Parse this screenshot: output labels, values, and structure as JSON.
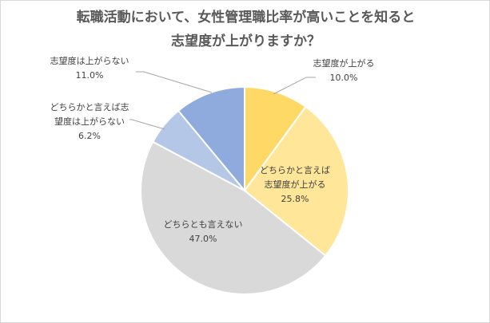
{
  "chart_data": {
    "type": "pie",
    "title": [
      "転職活動において、女性管理職比率が高いことを知ると",
      "志望度が上がりますか？"
    ],
    "unit": "%",
    "slices": [
      {
        "name": "志望度が上がる",
        "label_lines": [
          "志望度が上がる"
        ],
        "value": 10.0,
        "value_label": "10.0%",
        "color": "#ffd966"
      },
      {
        "name": "どちらかと言えば志望度が上がる",
        "label_lines": [
          "どちらかと言えば",
          "志望度が上がる"
        ],
        "value": 25.8,
        "value_label": "25.8%",
        "color": "#ffe699"
      },
      {
        "name": "どちらとも言えない",
        "label_lines": [
          "どちらとも言えない"
        ],
        "value": 47.0,
        "value_label": "47.0%",
        "color": "#d9d9d9"
      },
      {
        "name": "どちらかと言えば志望度は上がらない",
        "label_lines": [
          "どちらかと言えば志",
          "望度は上がらない"
        ],
        "value": 6.2,
        "value_label": "6.2%",
        "color": "#b4c7e7"
      },
      {
        "name": "志望度は上がらない",
        "label_lines": [
          "志望度は上がらない"
        ],
        "value": 11.0,
        "value_label": "11.0%",
        "color": "#8faadc"
      }
    ]
  }
}
